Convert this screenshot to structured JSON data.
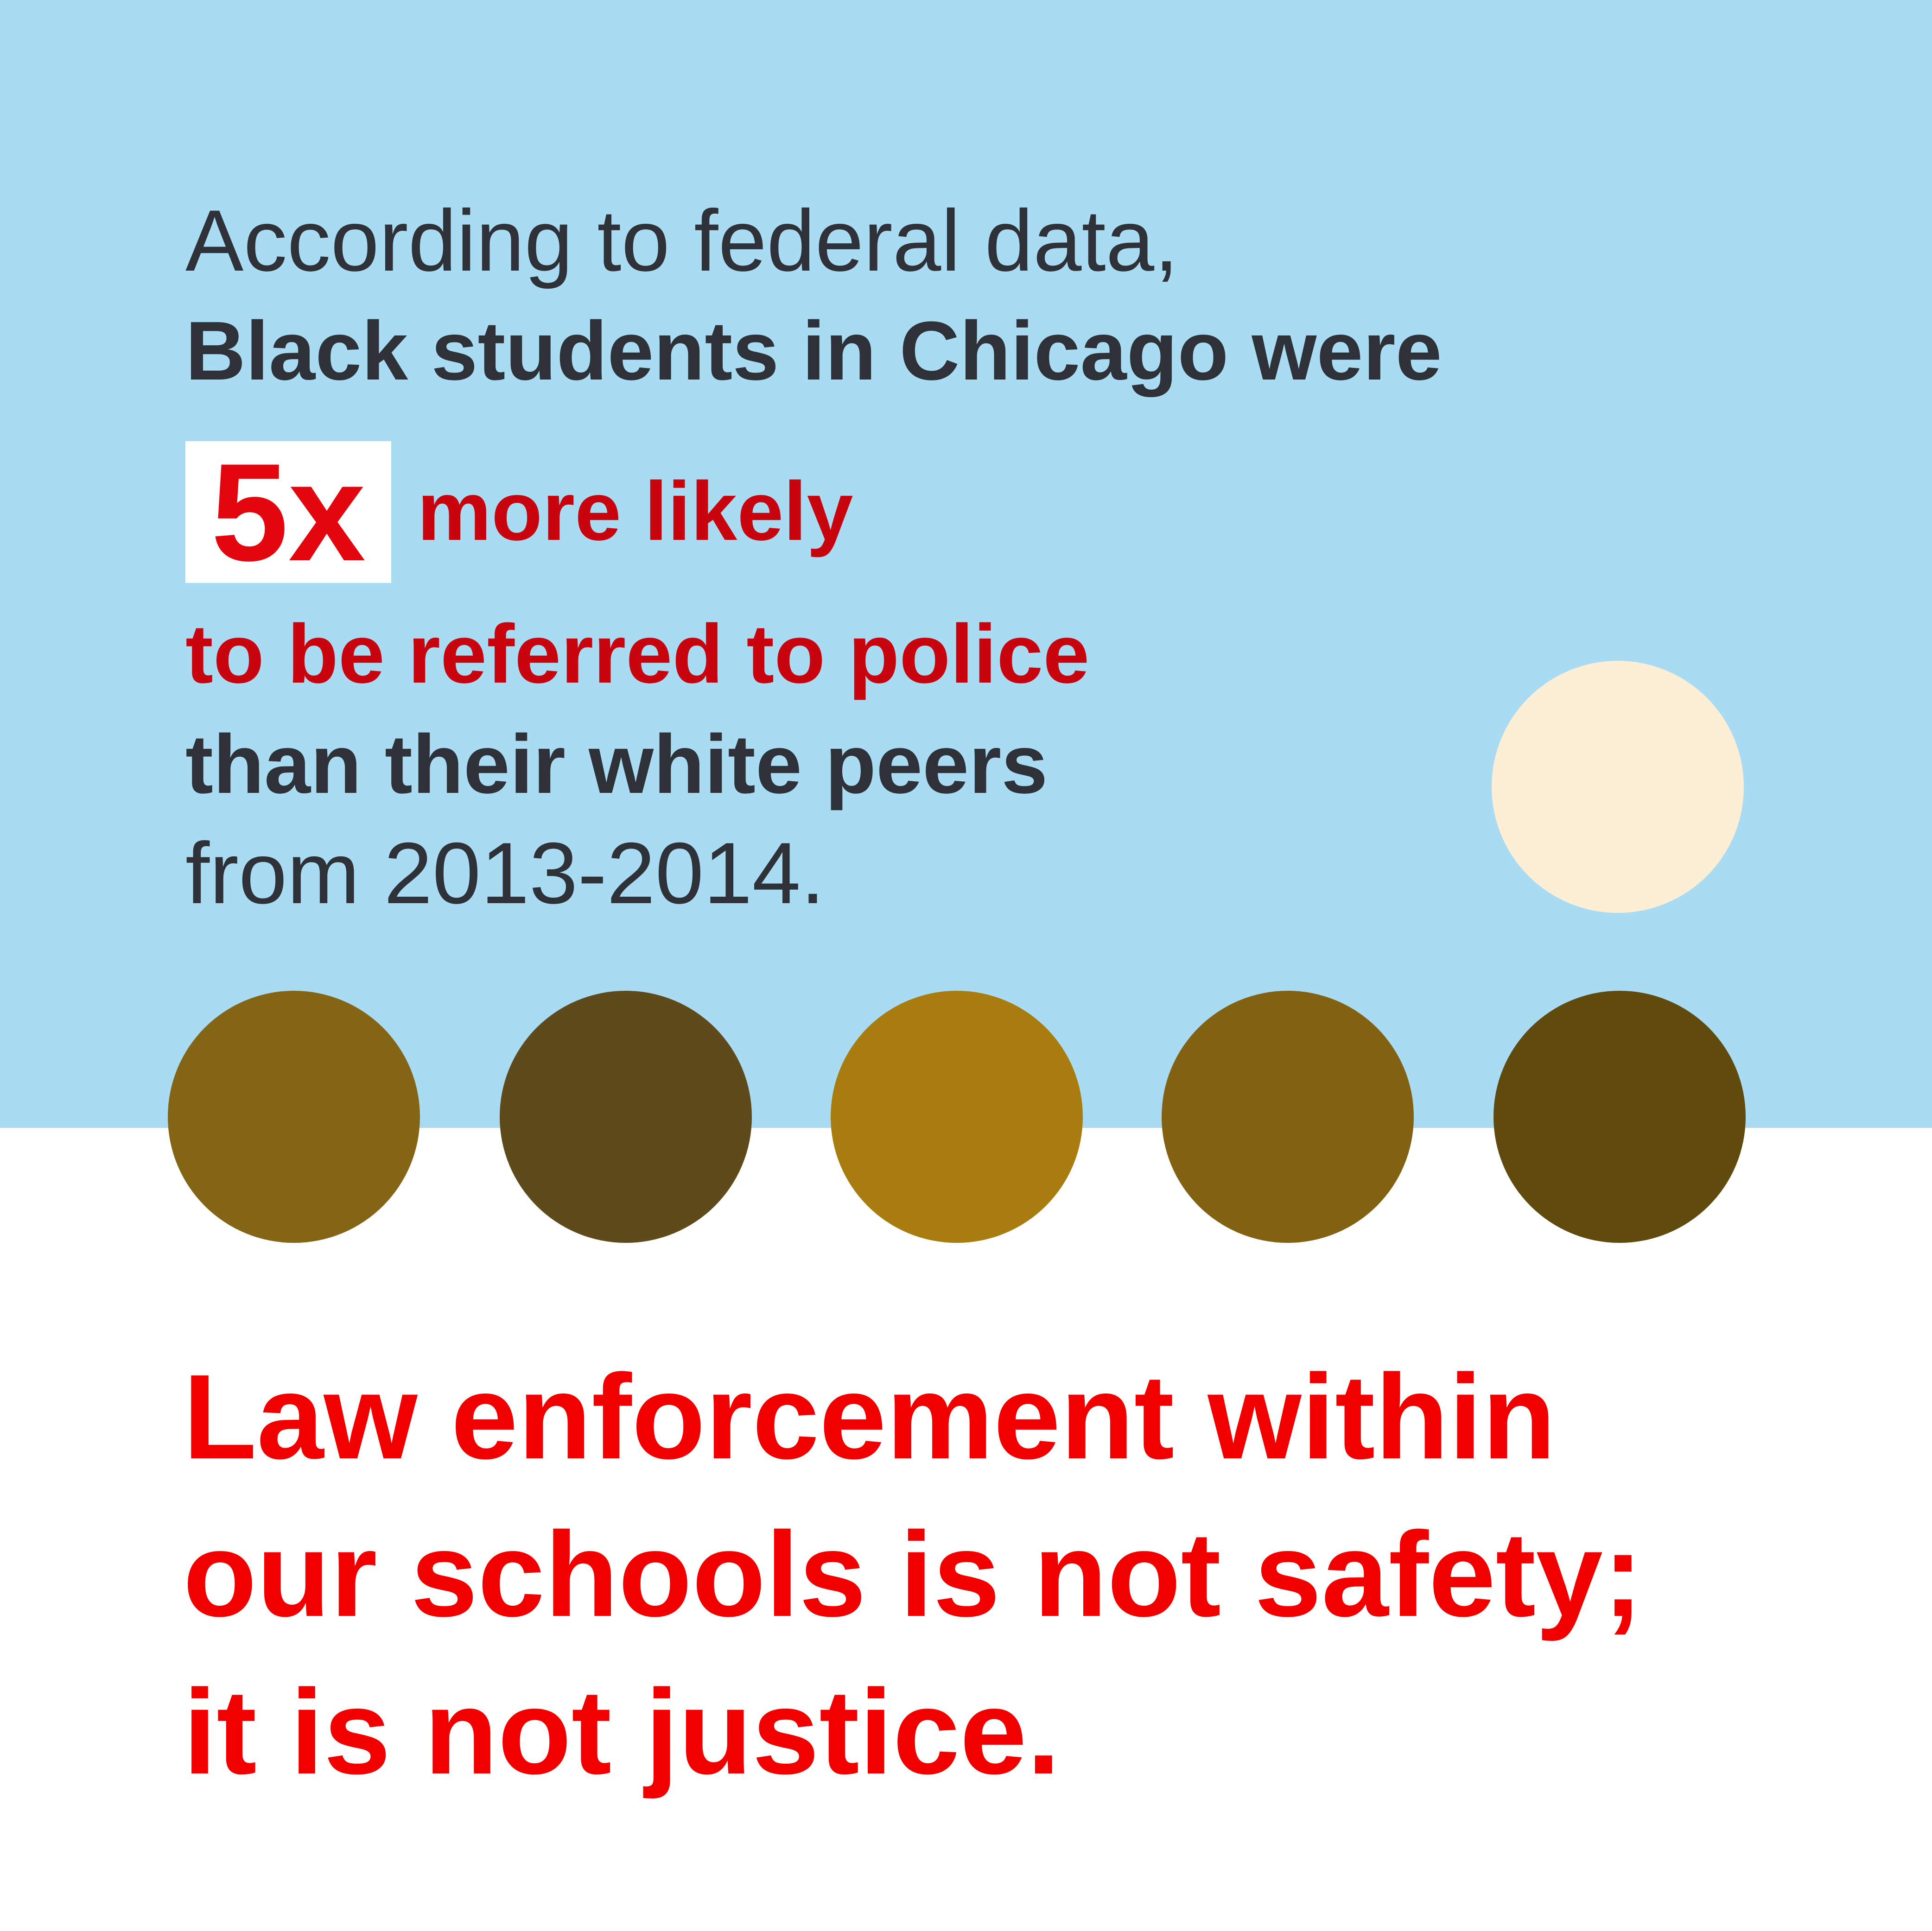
{
  "intro": {
    "line1": "According to federal data,",
    "line2": "Black students in Chicago were"
  },
  "stat": {
    "value": "5x",
    "suffix": "more likely"
  },
  "detail": {
    "line1": "to be referred to police",
    "line2": "than their white peers",
    "line3": "from 2013-2014."
  },
  "closing": {
    "line1": "Law enforcement within",
    "line2": "our schools is not safety;",
    "line3": "it is not justice."
  },
  "colors": {
    "background_top": "#a9dcf3",
    "background_bottom": "#ffffff",
    "text_dark": "#2e3137",
    "text_red": "#c8050f",
    "closing_red": "#f20000",
    "white_dot": "#fdeed6",
    "brown_dots": [
      "#836515",
      "#5f4a1b",
      "#a87c0e",
      "#836113",
      "#604a0e"
    ]
  }
}
